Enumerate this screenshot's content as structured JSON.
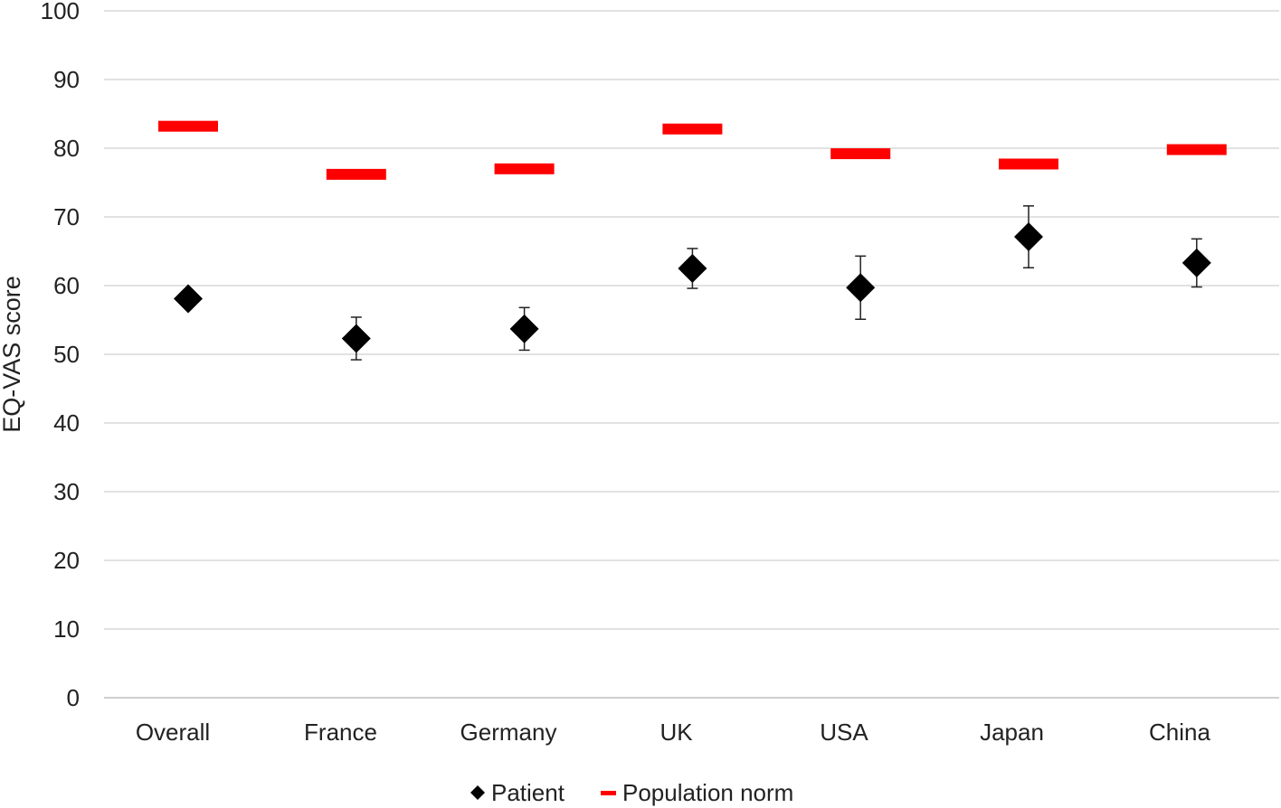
{
  "chart_data": {
    "type": "scatter",
    "title": "",
    "xlabel": "",
    "ylabel": "EQ-VAS score",
    "ylim": [
      0,
      100
    ],
    "yticks": [
      "0",
      "10",
      "20",
      "30",
      "40",
      "50",
      "60",
      "70",
      "80",
      "90",
      "100"
    ],
    "categories": [
      "Overall",
      "France",
      "Germany",
      "UK",
      "USA",
      "Japan",
      "China"
    ],
    "grid": true,
    "legend_position": "bottom",
    "series": [
      {
        "name": "Patient",
        "marker": "diamond",
        "color": "#000000",
        "values": [
          58.1,
          52.3,
          53.7,
          62.5,
          59.7,
          67.1,
          63.3
        ],
        "error_low": [
          null,
          49.2,
          50.6,
          59.6,
          55.1,
          62.6,
          59.8
        ],
        "error_high": [
          null,
          55.4,
          56.8,
          65.4,
          64.3,
          71.6,
          66.8
        ]
      },
      {
        "name": "Population norm",
        "marker": "dash",
        "color": "#ff0000",
        "values": [
          83.2,
          76.2,
          77.0,
          82.8,
          79.2,
          77.7,
          79.8
        ]
      }
    ]
  }
}
